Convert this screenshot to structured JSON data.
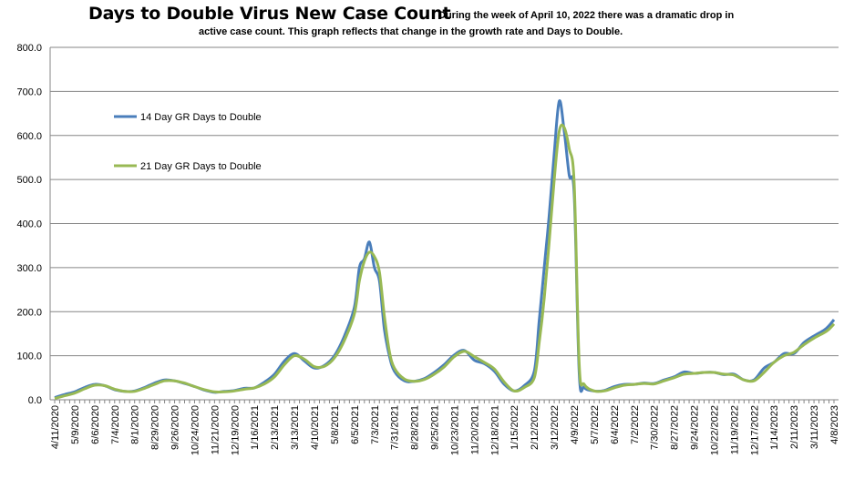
{
  "chart_data": {
    "type": "line",
    "title": "Days to Double Virus New Case Count",
    "subtitle": [
      "During the week of April 10, 2022 there was a dramatic drop in",
      "active case count.  This graph reflects that change in the growth rate and Days  to Double."
    ],
    "xlabel": "",
    "ylabel": "",
    "ylim": [
      0,
      800
    ],
    "y_ticks": [
      "0.0",
      "100.0",
      "200.0",
      "300.0",
      "400.0",
      "500.0",
      "600.0",
      "700.0",
      "800.0"
    ],
    "x_range": [
      "2020-04-11",
      "2023-04-08"
    ],
    "x_ticks": [
      "4/11/2020",
      "5/9/2020",
      "6/6/2020",
      "7/4/2020",
      "8/1/2020",
      "8/29/2020",
      "9/26/2020",
      "10/24/2020",
      "11/21/2020",
      "12/19/2020",
      "1/16/2021",
      "2/13/2021",
      "3/13/2021",
      "4/10/2021",
      "5/8/2021",
      "6/5/2021",
      "7/3/2021",
      "7/31/2021",
      "8/28/2021",
      "9/25/2021",
      "10/23/2021",
      "11/20/2021",
      "12/18/2021",
      "1/15/2022",
      "2/12/2022",
      "3/12/2022",
      "4/9/2022",
      "5/7/2022",
      "6/4/2022",
      "7/2/2022",
      "7/30/2022",
      "8/27/2022",
      "9/24/2022",
      "10/22/2022",
      "11/19/2022",
      "12/17/2022",
      "1/14/2023",
      "2/11/2023",
      "3/11/2023",
      "4/8/2023"
    ],
    "grid": "horizontal",
    "legend_position": "top-left inside",
    "x": [
      "2020-04-11",
      "2020-04-25",
      "2020-05-09",
      "2020-05-23",
      "2020-06-06",
      "2020-06-20",
      "2020-07-04",
      "2020-07-18",
      "2020-08-01",
      "2020-08-15",
      "2020-08-29",
      "2020-09-12",
      "2020-09-26",
      "2020-10-10",
      "2020-10-24",
      "2020-11-07",
      "2020-11-21",
      "2020-12-05",
      "2020-12-19",
      "2021-01-02",
      "2021-01-16",
      "2021-01-30",
      "2021-02-13",
      "2021-02-27",
      "2021-03-13",
      "2021-03-27",
      "2021-04-10",
      "2021-04-24",
      "2021-05-08",
      "2021-05-22",
      "2021-06-05",
      "2021-06-12",
      "2021-06-19",
      "2021-06-26",
      "2021-07-03",
      "2021-07-10",
      "2021-07-17",
      "2021-07-24",
      "2021-07-31",
      "2021-08-14",
      "2021-08-28",
      "2021-09-11",
      "2021-09-25",
      "2021-10-09",
      "2021-10-23",
      "2021-11-06",
      "2021-11-20",
      "2021-12-04",
      "2021-12-18",
      "2022-01-01",
      "2022-01-15",
      "2022-01-29",
      "2022-02-12",
      "2022-02-19",
      "2022-02-26",
      "2022-03-05",
      "2022-03-12",
      "2022-03-19",
      "2022-03-26",
      "2022-04-02",
      "2022-04-09",
      "2022-04-16",
      "2022-04-23",
      "2022-05-07",
      "2022-05-21",
      "2022-06-04",
      "2022-06-18",
      "2022-07-02",
      "2022-07-16",
      "2022-07-30",
      "2022-08-13",
      "2022-08-27",
      "2022-09-10",
      "2022-09-24",
      "2022-10-08",
      "2022-10-22",
      "2022-11-05",
      "2022-11-19",
      "2022-12-03",
      "2022-12-17",
      "2022-12-31",
      "2023-01-14",
      "2023-01-28",
      "2023-02-11",
      "2023-02-25",
      "2023-03-11",
      "2023-03-25",
      "2023-04-01",
      "2023-04-08"
    ],
    "series": [
      {
        "name": "14 Day GR Days to Double",
        "color": "#4a7ebb",
        "values": [
          5,
          12,
          18,
          28,
          35,
          32,
          23,
          19,
          20,
          28,
          38,
          45,
          43,
          37,
          30,
          22,
          17,
          19,
          21,
          26,
          27,
          40,
          58,
          88,
          105,
          88,
          72,
          78,
          100,
          145,
          210,
          300,
          320,
          358,
          300,
          270,
          160,
          100,
          65,
          43,
          42,
          48,
          62,
          80,
          102,
          112,
          90,
          82,
          65,
          35,
          20,
          32,
          65,
          180,
          300,
          420,
          560,
          678,
          610,
          510,
          465,
          60,
          28,
          20,
          21,
          30,
          35,
          35,
          38,
          37,
          45,
          52,
          63,
          60,
          62,
          62,
          57,
          58,
          45,
          45,
          72,
          85,
          105,
          105,
          130,
          145,
          158,
          168,
          182
        ]
      },
      {
        "name": "21 Day GR Days to Double",
        "color": "#98b954",
        "values": [
          3,
          9,
          15,
          25,
          33,
          32,
          24,
          19,
          19,
          26,
          35,
          43,
          43,
          38,
          30,
          23,
          18,
          18,
          20,
          24,
          27,
          36,
          52,
          80,
          100,
          92,
          75,
          76,
          95,
          135,
          195,
          270,
          315,
          335,
          325,
          290,
          190,
          110,
          72,
          47,
          42,
          46,
          58,
          75,
          98,
          110,
          98,
          85,
          70,
          40,
          20,
          28,
          50,
          130,
          230,
          360,
          500,
          610,
          618,
          570,
          490,
          80,
          35,
          20,
          20,
          27,
          33,
          35,
          37,
          36,
          43,
          50,
          58,
          60,
          62,
          62,
          58,
          56,
          45,
          43,
          62,
          85,
          100,
          108,
          125,
          140,
          152,
          160,
          172
        ]
      }
    ]
  }
}
